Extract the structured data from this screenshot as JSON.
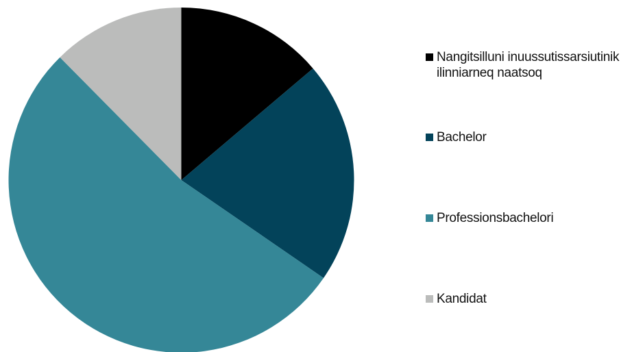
{
  "chart_data": {
    "type": "pie",
    "title": "",
    "start_angle_deg": 0,
    "direction": "clockwise",
    "legend_position": "right",
    "slices": [
      {
        "label": "Nangitsilluni inuussutissarsiutinik ilinniarneq naatsoq",
        "value": 13.8,
        "color": "#000000"
      },
      {
        "label": "Bachelor",
        "value": 20.8,
        "color": "#03435a"
      },
      {
        "label": "Professionsbachelori",
        "value": 53.0,
        "color": "#358797"
      },
      {
        "label": "Kandidat",
        "value": 12.4,
        "color": "#bbbcbb"
      }
    ]
  }
}
